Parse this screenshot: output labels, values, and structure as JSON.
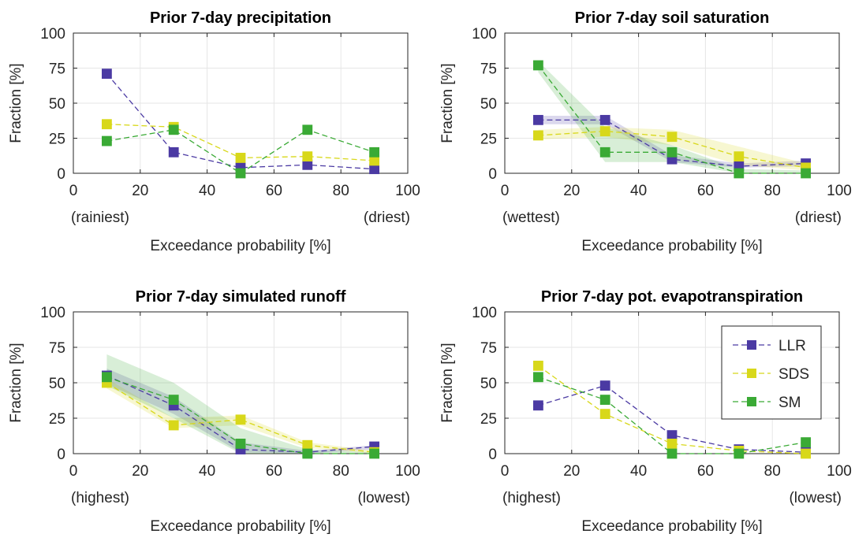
{
  "colors": {
    "LLR": "#4b3aa3",
    "SDS": "#d8d81a",
    "SM": "#3aaa35"
  },
  "chart_data": [
    {
      "type": "line",
      "title": "Prior 7-day precipitation",
      "xlabel": "Exceedance probability [%]",
      "ylabel": "Fraction [%]",
      "xlim": [
        0,
        100
      ],
      "ylim": [
        0,
        100
      ],
      "xticks": [
        0,
        20,
        40,
        60,
        80,
        100
      ],
      "yticks": [
        0,
        25,
        50,
        75,
        100
      ],
      "xtick_labels": [
        "0",
        "20",
        "40",
        "60",
        "80",
        "100"
      ],
      "ytick_labels": [
        "0",
        "25",
        "50",
        "75",
        "100"
      ],
      "end_labels": {
        "left": "(rainiest)",
        "right": "(driest)"
      },
      "grid": true,
      "x": [
        10,
        30,
        50,
        70,
        90
      ],
      "series": [
        {
          "name": "LLR",
          "values": [
            71,
            15,
            4,
            6,
            3
          ]
        },
        {
          "name": "SDS",
          "values": [
            35,
            33,
            11,
            12,
            9
          ]
        },
        {
          "name": "SM",
          "values": [
            23,
            31,
            0,
            31,
            15
          ]
        }
      ]
    },
    {
      "type": "line",
      "title": "Prior 7-day soil saturation",
      "xlabel": "Exceedance probability [%]",
      "ylabel": "Fraction [%]",
      "xlim": [
        0,
        100
      ],
      "ylim": [
        0,
        100
      ],
      "xticks": [
        0,
        20,
        40,
        60,
        80,
        100
      ],
      "yticks": [
        0,
        25,
        50,
        75,
        100
      ],
      "xtick_labels": [
        "0",
        "20",
        "40",
        "60",
        "80",
        "100"
      ],
      "ytick_labels": [
        "0",
        "25",
        "50",
        "75",
        "100"
      ],
      "end_labels": {
        "left": "(wettest)",
        "right": "(driest)"
      },
      "grid": true,
      "x": [
        10,
        30,
        50,
        70,
        90
      ],
      "series": [
        {
          "name": "LLR",
          "values": [
            38,
            38,
            10,
            5,
            7
          ],
          "band_low": [
            35,
            35,
            8,
            4,
            5
          ],
          "band_high": [
            41,
            41,
            13,
            7,
            9
          ]
        },
        {
          "name": "SDS",
          "values": [
            27,
            30,
            26,
            12,
            4
          ],
          "band_low": [
            24,
            26,
            20,
            6,
            2
          ],
          "band_high": [
            31,
            33,
            31,
            19,
            7
          ]
        },
        {
          "name": "SM",
          "values": [
            77,
            15,
            15,
            0,
            0
          ],
          "band_low": [
            72,
            8,
            8,
            0,
            0
          ],
          "band_high": [
            80,
            33,
            20,
            3,
            2
          ]
        }
      ]
    },
    {
      "type": "line",
      "title": "Prior 7-day simulated runoff",
      "xlabel": "Exceedance probability [%]",
      "ylabel": "Fraction [%]",
      "xlim": [
        0,
        100
      ],
      "ylim": [
        0,
        100
      ],
      "xticks": [
        0,
        20,
        40,
        60,
        80,
        100
      ],
      "yticks": [
        0,
        25,
        50,
        75,
        100
      ],
      "xtick_labels": [
        "0",
        "20",
        "40",
        "60",
        "80",
        "100"
      ],
      "ytick_labels": [
        "0",
        "25",
        "50",
        "75",
        "100"
      ],
      "end_labels": {
        "left": "(highest)",
        "right": "(lowest)"
      },
      "grid": true,
      "x": [
        10,
        30,
        50,
        70,
        90
      ],
      "series": [
        {
          "name": "LLR",
          "values": [
            55,
            34,
            3,
            1,
            5
          ],
          "band_low": [
            49,
            28,
            1,
            0,
            3
          ],
          "band_high": [
            60,
            40,
            8,
            2,
            6
          ]
        },
        {
          "name": "SDS",
          "values": [
            50,
            20,
            24,
            6,
            1
          ],
          "band_low": [
            46,
            18,
            20,
            4,
            0
          ],
          "band_high": [
            53,
            25,
            27,
            8,
            2
          ]
        },
        {
          "name": "SM",
          "values": [
            54,
            38,
            7,
            0,
            0
          ],
          "band_low": [
            48,
            25,
            0,
            0,
            0
          ],
          "band_high": [
            70,
            50,
            18,
            3,
            1
          ]
        }
      ]
    },
    {
      "type": "line",
      "title": "Prior 7-day pot. evapotranspiration",
      "xlabel": "Exceedance probability [%]",
      "ylabel": "Fraction [%]",
      "xlim": [
        0,
        100
      ],
      "ylim": [
        0,
        100
      ],
      "xticks": [
        0,
        20,
        40,
        60,
        80,
        100
      ],
      "yticks": [
        0,
        25,
        50,
        75,
        100
      ],
      "xtick_labels": [
        "0",
        "20",
        "40",
        "60",
        "80",
        "100"
      ],
      "ytick_labels": [
        "0",
        "25",
        "50",
        "75",
        "100"
      ],
      "end_labels": {
        "left": "(highest)",
        "right": "(lowest)"
      },
      "grid": true,
      "legend": {
        "location": "top-right",
        "entries": [
          "LLR",
          "SDS",
          "SM"
        ]
      },
      "x": [
        10,
        30,
        50,
        70,
        90
      ],
      "series": [
        {
          "name": "LLR",
          "values": [
            34,
            48,
            13,
            3,
            1
          ]
        },
        {
          "name": "SDS",
          "values": [
            62,
            28,
            7,
            2,
            0
          ]
        },
        {
          "name": "SM",
          "values": [
            54,
            38,
            0,
            0,
            8
          ]
        }
      ]
    }
  ]
}
